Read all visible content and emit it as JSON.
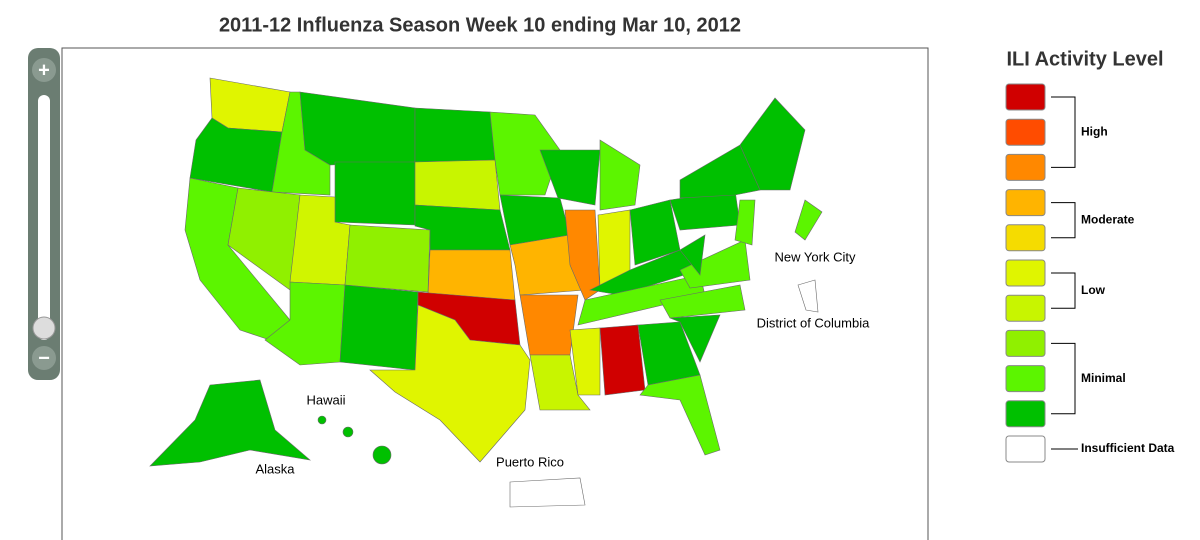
{
  "title": "2011-12 Influenza Season Week 10 ending Mar 10, 2012",
  "zoom": {
    "in": "+",
    "out": "−"
  },
  "map_labels": {
    "new_york_city": "New York City",
    "district_of_columbia": "District of Columbia",
    "hawaii": "Hawaii",
    "alaska": "Alaska",
    "puerto_rico": "Puerto Rico"
  },
  "legend": {
    "title": "ILI Activity Level",
    "swatches": [
      "#d00000",
      "#ff4c00",
      "#ff8800",
      "#ffb400",
      "#f5dc00",
      "#e0f500",
      "#c8f500",
      "#90f000",
      "#5cf500",
      "#00c000",
      "#ffffff"
    ],
    "groups": [
      "High",
      "Moderate",
      "Low",
      "Minimal",
      "Insufficient Data"
    ]
  }
}
